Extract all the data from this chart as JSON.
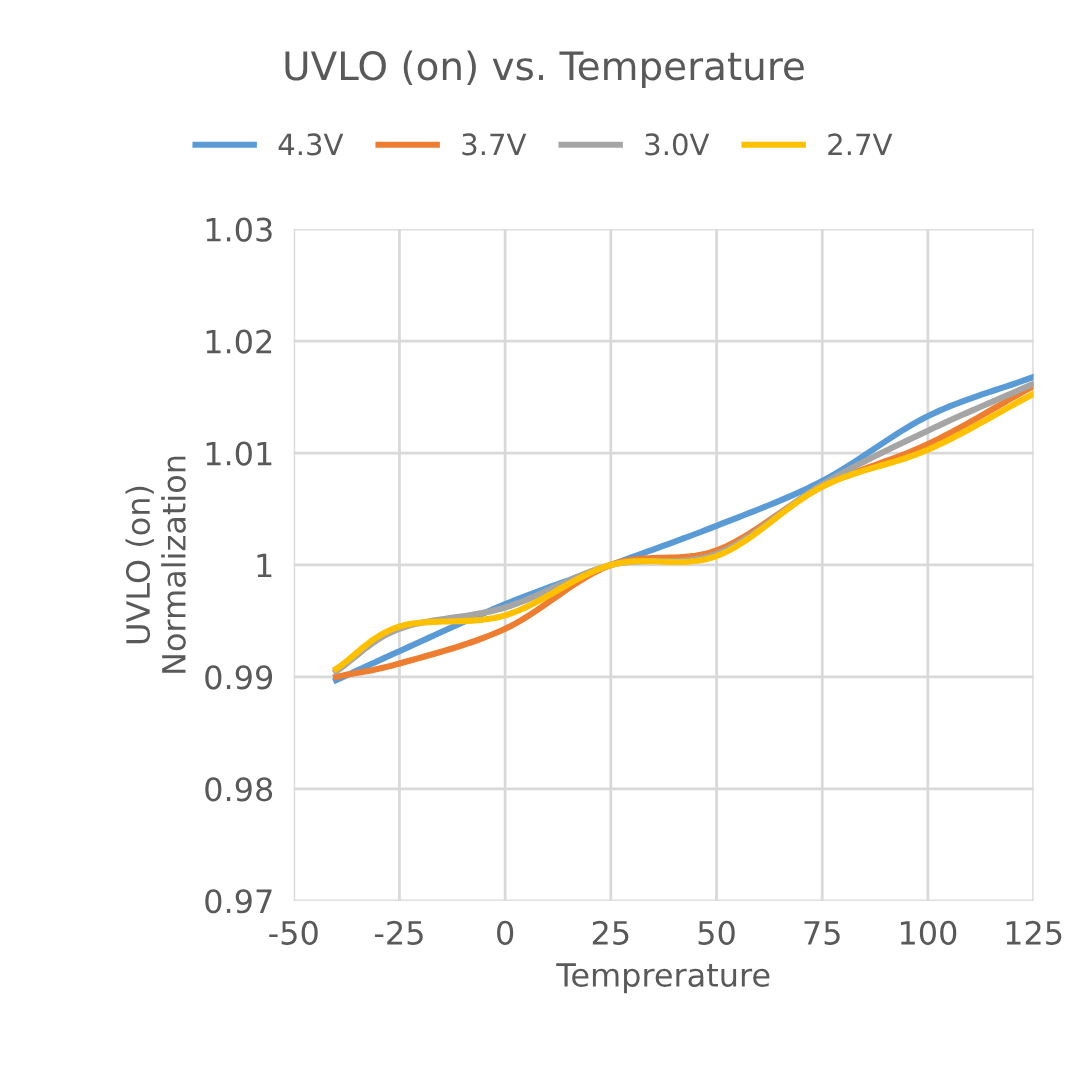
{
  "chart_data": {
    "type": "line",
    "title": "UVLO (on) vs. Temperature",
    "xlabel": "Temprerature",
    "ylabel": "UVLO (on)\nNormalization",
    "x": [
      -40,
      -25,
      0,
      25,
      50,
      75,
      100,
      125
    ],
    "series": [
      {
        "name": "4.3V",
        "color": "#5b9bd5",
        "values": [
          0.9897,
          0.9923,
          0.9965,
          1.0,
          1.0035,
          1.0075,
          1.0133,
          1.0168
        ]
      },
      {
        "name": "3.7V",
        "color": "#ed7d31",
        "values": [
          0.99,
          0.9912,
          0.9943,
          1.0,
          1.0013,
          1.007,
          1.0108,
          1.016
        ]
      },
      {
        "name": "3.0V",
        "color": "#a5a5a5",
        "values": [
          0.9905,
          0.9943,
          0.9962,
          1.0,
          1.001,
          1.0072,
          1.012,
          1.0162
        ]
      },
      {
        "name": "2.7V",
        "color": "#ffc000",
        "values": [
          0.9907,
          0.9945,
          0.9955,
          1.0,
          1.0008,
          1.007,
          1.0103,
          1.0153
        ]
      }
    ],
    "xlim": [
      -50,
      125
    ],
    "xticks": [
      -50,
      -25,
      0,
      25,
      50,
      75,
      100,
      125
    ],
    "ylim": [
      0.97,
      1.03
    ],
    "yticks": [
      0.97,
      0.98,
      0.99,
      1,
      1.01,
      1.02,
      1.03
    ],
    "grid": true,
    "legend": "top",
    "marker": "none",
    "line_style": "solid"
  }
}
